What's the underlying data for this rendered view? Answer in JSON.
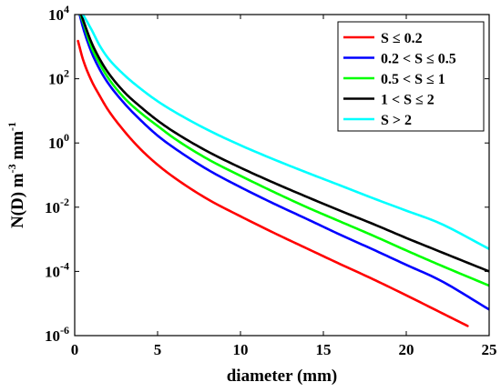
{
  "chart_data": {
    "type": "line",
    "xlabel": "diameter (mm)",
    "ylabel": {
      "main": "N(D)  m",
      "exp1": "-3",
      "mid": " mm",
      "exp2": "-1"
    },
    "xlim": [
      0,
      25
    ],
    "ylim": [
      1e-06,
      10000.0
    ],
    "yscale": "log",
    "grid": false,
    "legend_position": "top-right",
    "x_ticks": [
      {
        "value": 0,
        "label": "0"
      },
      {
        "value": 5,
        "label": "5"
      },
      {
        "value": 10,
        "label": "10"
      },
      {
        "value": 15,
        "label": "15"
      },
      {
        "value": 20,
        "label": "20"
      },
      {
        "value": 25,
        "label": "25"
      }
    ],
    "y_ticks": [
      {
        "value": 10000.0,
        "base": "10",
        "exp": "4"
      },
      {
        "value": 100.0,
        "base": "10",
        "exp": "2"
      },
      {
        "value": 1.0,
        "base": "10",
        "exp": "0"
      },
      {
        "value": 0.01,
        "base": "10",
        "exp": "-2"
      },
      {
        "value": 0.0001,
        "base": "10",
        "exp": "-4"
      },
      {
        "value": 1e-06,
        "base": "10",
        "exp": "-6"
      }
    ],
    "series": [
      {
        "name": "S ≤ 0.2",
        "color": "#ff0000",
        "x": [
          0.2,
          0.5,
          1,
          1.5,
          2,
          3,
          4,
          5,
          6,
          8,
          10,
          12,
          14,
          16,
          18,
          20,
          22,
          23.7
        ],
        "y": [
          1500,
          400,
          90,
          30,
          11,
          2.3,
          0.62,
          0.21,
          0.084,
          0.018,
          0.0052,
          0.0016,
          0.00052,
          0.00017,
          5.7e-05,
          1.8e-05,
          5.5e-06,
          2e-06
        ]
      },
      {
        "name": "0.2 < S ≤ 0.5",
        "color": "#0000ff",
        "x": [
          0.3,
          0.5,
          1,
          1.5,
          2,
          3,
          4,
          5,
          6,
          8,
          10,
          12,
          14,
          16,
          18,
          20,
          22,
          25
        ],
        "y": [
          10000,
          4000,
          700,
          200,
          75,
          17,
          5,
          1.7,
          0.7,
          0.15,
          0.042,
          0.013,
          0.0043,
          0.0014,
          0.00048,
          0.00016,
          5.4e-05,
          6.5e-06
        ]
      },
      {
        "name": "0.5 < S ≤ 1",
        "color": "#00ff00",
        "x": [
          0.35,
          0.5,
          1,
          1.5,
          2,
          3,
          4,
          5,
          6,
          8,
          10,
          12,
          14,
          16,
          18,
          20,
          22,
          25
        ],
        "y": [
          10000,
          6000,
          1000,
          300,
          110,
          25,
          8.5,
          3.4,
          1.4,
          0.32,
          0.095,
          0.03,
          0.01,
          0.0036,
          0.0013,
          0.00045,
          0.00016,
          3.6e-05
        ]
      },
      {
        "name": "1 < S ≤ 2",
        "color": "#000000",
        "x": [
          0.4,
          0.5,
          1,
          1.5,
          2,
          3,
          4,
          5,
          6,
          8,
          10,
          12,
          14,
          16,
          18,
          20,
          22,
          25
        ],
        "y": [
          10000,
          7000,
          1400,
          420,
          160,
          38,
          13,
          5,
          2.2,
          0.55,
          0.17,
          0.058,
          0.021,
          0.0078,
          0.003,
          0.0011,
          0.00042,
          0.0001
        ]
      },
      {
        "name": "S > 2",
        "color": "#00ffff",
        "x": [
          0.5,
          1,
          1.5,
          2,
          3,
          4,
          5,
          6,
          8,
          10,
          12,
          14,
          16,
          18,
          20,
          22,
          25
        ],
        "y": [
          10000,
          3500,
          1100,
          450,
          130,
          48,
          20,
          9.5,
          2.6,
          0.85,
          0.31,
          0.12,
          0.048,
          0.019,
          0.0078,
          0.0032,
          0.0005
        ]
      }
    ]
  }
}
